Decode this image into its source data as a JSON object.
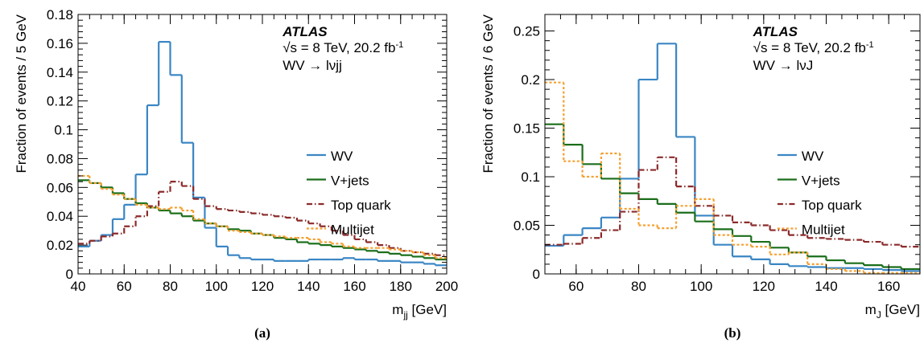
{
  "chart_data": [
    {
      "type": "histogram",
      "panel_label": "(a)",
      "x_label": {
        "symbol": "m",
        "subscript": "jj",
        "unit": " [GeV]"
      },
      "y_label": "Fraction of events / 5 GeV",
      "annotations": {
        "experiment": "ATLAS",
        "energy": "√s = 8 TeV, 20.2 fb",
        "energy_superscript": "-1",
        "process": "WV → lνjj"
      },
      "legend": "center-right",
      "xlim": [
        40,
        200
      ],
      "xticks": [
        40,
        60,
        80,
        100,
        120,
        140,
        160,
        180,
        200
      ],
      "ylim": [
        0,
        0.18
      ],
      "yticks": [
        0,
        0.02,
        0.04,
        0.06,
        0.08,
        0.1,
        0.12,
        0.14,
        0.16,
        0.18
      ],
      "bins": [
        40,
        45,
        50,
        55,
        60,
        65,
        70,
        75,
        80,
        85,
        90,
        95,
        100,
        105,
        110,
        115,
        120,
        125,
        130,
        135,
        140,
        145,
        150,
        155,
        160,
        165,
        170,
        175,
        180,
        185,
        190,
        195,
        200
      ],
      "series": [
        {
          "name": "WV",
          "color": "#3a86c4",
          "dash": "solid",
          "values": [
            0.019,
            0.023,
            0.027,
            0.038,
            0.048,
            0.069,
            0.117,
            0.161,
            0.138,
            0.091,
            0.053,
            0.032,
            0.019,
            0.013,
            0.011,
            0.01,
            0.01,
            0.009,
            0.009,
            0.009,
            0.01,
            0.01,
            0.01,
            0.011,
            0.01,
            0.01,
            0.009,
            0.009,
            0.008,
            0.008,
            0.007,
            0.006
          ]
        },
        {
          "name": "V+jets",
          "color": "#1a6e1a",
          "dash": "solid",
          "values": [
            0.065,
            0.063,
            0.06,
            0.056,
            0.052,
            0.049,
            0.046,
            0.044,
            0.042,
            0.04,
            0.037,
            0.035,
            0.033,
            0.031,
            0.03,
            0.028,
            0.027,
            0.025,
            0.024,
            0.022,
            0.021,
            0.02,
            0.019,
            0.018,
            0.017,
            0.016,
            0.015,
            0.014,
            0.013,
            0.012,
            0.011,
            0.01
          ]
        },
        {
          "name": "Top quark",
          "color": "#8b2a2a",
          "dash": "dashdot",
          "values": [
            0.021,
            0.023,
            0.026,
            0.028,
            0.033,
            0.04,
            0.047,
            0.057,
            0.064,
            0.061,
            0.052,
            0.047,
            0.045,
            0.044,
            0.043,
            0.042,
            0.041,
            0.04,
            0.039,
            0.037,
            0.035,
            0.033,
            0.03,
            0.027,
            0.024,
            0.022,
            0.02,
            0.018,
            0.016,
            0.015,
            0.014,
            0.013
          ]
        },
        {
          "name": "Multijet",
          "color": "#f5a030",
          "dash": "dotted",
          "values": [
            0.068,
            0.063,
            0.059,
            0.055,
            0.052,
            0.048,
            0.046,
            0.045,
            0.046,
            0.044,
            0.038,
            0.035,
            0.033,
            0.03,
            0.029,
            0.028,
            0.027,
            0.026,
            0.025,
            0.025,
            0.024,
            0.022,
            0.021,
            0.019,
            0.018,
            0.018,
            0.018,
            0.017,
            0.016,
            0.015,
            0.013,
            0.011
          ]
        }
      ]
    },
    {
      "type": "histogram",
      "panel_label": "(b)",
      "x_label": {
        "symbol": "m",
        "subscript": "J",
        "unit": " [GeV]"
      },
      "y_label": "Fraction of events / 6 GeV",
      "annotations": {
        "experiment": "ATLAS",
        "energy": "√s = 8 TeV, 20.2 fb",
        "energy_superscript": "-1",
        "process": "WV → lνJ"
      },
      "legend": "center-right",
      "xlim": [
        50,
        170
      ],
      "xticks": [
        60,
        80,
        100,
        120,
        140,
        160
      ],
      "ylim": [
        0,
        0.267
      ],
      "yticks": [
        0,
        0.05,
        0.1,
        0.15,
        0.2,
        0.25
      ],
      "bins": [
        50,
        56,
        62,
        68,
        74,
        80,
        86,
        92,
        98,
        104,
        110,
        116,
        122,
        128,
        134,
        140,
        146,
        152,
        158,
        164,
        170
      ],
      "series": [
        {
          "name": "WV",
          "color": "#3a86c4",
          "dash": "solid",
          "values": [
            0.029,
            0.04,
            0.047,
            0.058,
            0.098,
            0.2,
            0.237,
            0.141,
            0.06,
            0.03,
            0.018,
            0.015,
            0.01,
            0.008,
            0.007,
            0.006,
            0.006,
            0.005,
            0.004,
            0.003
          ]
        },
        {
          "name": "V+jets",
          "color": "#1a6e1a",
          "dash": "solid",
          "values": [
            0.154,
            0.133,
            0.113,
            0.098,
            0.083,
            0.077,
            0.072,
            0.063,
            0.054,
            0.046,
            0.039,
            0.033,
            0.027,
            0.022,
            0.018,
            0.014,
            0.011,
            0.009,
            0.007,
            0.005
          ]
        },
        {
          "name": "Top quark",
          "color": "#8b2a2a",
          "dash": "dashdot",
          "values": [
            0.03,
            0.031,
            0.037,
            0.045,
            0.064,
            0.107,
            0.12,
            0.09,
            0.07,
            0.06,
            0.053,
            0.05,
            0.045,
            0.04,
            0.037,
            0.036,
            0.035,
            0.033,
            0.03,
            0.028
          ]
        },
        {
          "name": "Multijet",
          "color": "#f5a030",
          "dash": "dotted",
          "values": [
            0.197,
            0.116,
            0.1,
            0.124,
            0.067,
            0.05,
            0.047,
            0.07,
            0.077,
            0.04,
            0.03,
            0.028,
            0.02,
            0.022,
            0.01,
            0.005,
            0.003,
            0.001,
            0.001,
            0.001
          ]
        }
      ]
    }
  ]
}
